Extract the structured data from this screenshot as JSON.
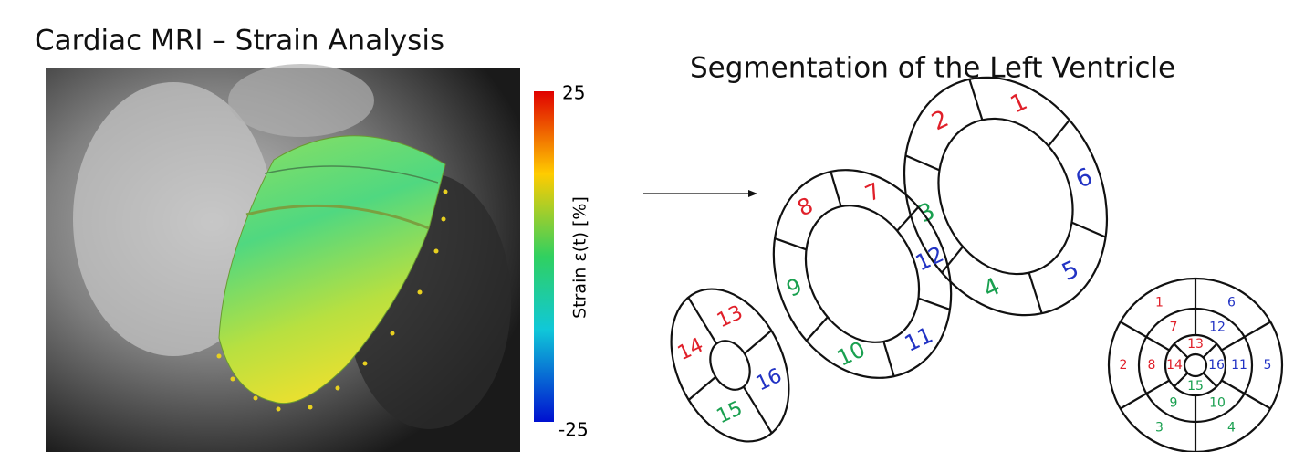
{
  "left": {
    "title": "Cardiac MRI – Strain Analysis",
    "colorbar": {
      "max": 25,
      "min": -25,
      "label": "Strain ε(t) [%]"
    }
  },
  "right": {
    "title": "Segmentation of the Left Ventricle",
    "rings": [
      {
        "segments": [
          {
            "label": 1,
            "color": "#e0202a"
          },
          {
            "label": 6,
            "color": "#2233c4"
          },
          {
            "label": 5,
            "color": "#2233c4"
          },
          {
            "label": 4,
            "color": "#1aa050"
          },
          {
            "label": 3,
            "color": "#1aa050"
          },
          {
            "label": 2,
            "color": "#e0202a"
          }
        ]
      },
      {
        "segments": [
          {
            "label": 7,
            "color": "#e0202a"
          },
          {
            "label": 12,
            "color": "#2233c4"
          },
          {
            "label": 11,
            "color": "#2233c4"
          },
          {
            "label": 10,
            "color": "#1aa050"
          },
          {
            "label": 9,
            "color": "#1aa050"
          },
          {
            "label": 8,
            "color": "#e0202a"
          }
        ]
      },
      {
        "segments": [
          {
            "label": 13,
            "color": "#e0202a"
          },
          {
            "label": 16,
            "color": "#2233c4"
          },
          {
            "label": 15,
            "color": "#1aa050"
          },
          {
            "label": 14,
            "color": "#e0202a"
          }
        ]
      }
    ],
    "bullseye": {
      "outer": [
        {
          "label": 1,
          "color": "#e0202a"
        },
        {
          "label": 6,
          "color": "#2233c4"
        },
        {
          "label": 5,
          "color": "#2233c4"
        },
        {
          "label": 4,
          "color": "#1aa050"
        },
        {
          "label": 3,
          "color": "#1aa050"
        },
        {
          "label": 2,
          "color": "#e0202a"
        }
      ],
      "middle": [
        {
          "label": 7,
          "color": "#e0202a"
        },
        {
          "label": 12,
          "color": "#2233c4"
        },
        {
          "label": 11,
          "color": "#2233c4"
        },
        {
          "label": 10,
          "color": "#1aa050"
        },
        {
          "label": 9,
          "color": "#1aa050"
        },
        {
          "label": 8,
          "color": "#e0202a"
        }
      ],
      "inner": [
        {
          "label": 13,
          "color": "#e0202a"
        },
        {
          "label": 16,
          "color": "#2233c4"
        },
        {
          "label": 15,
          "color": "#1aa050"
        },
        {
          "label": 14,
          "color": "#e0202a"
        }
      ]
    }
  }
}
